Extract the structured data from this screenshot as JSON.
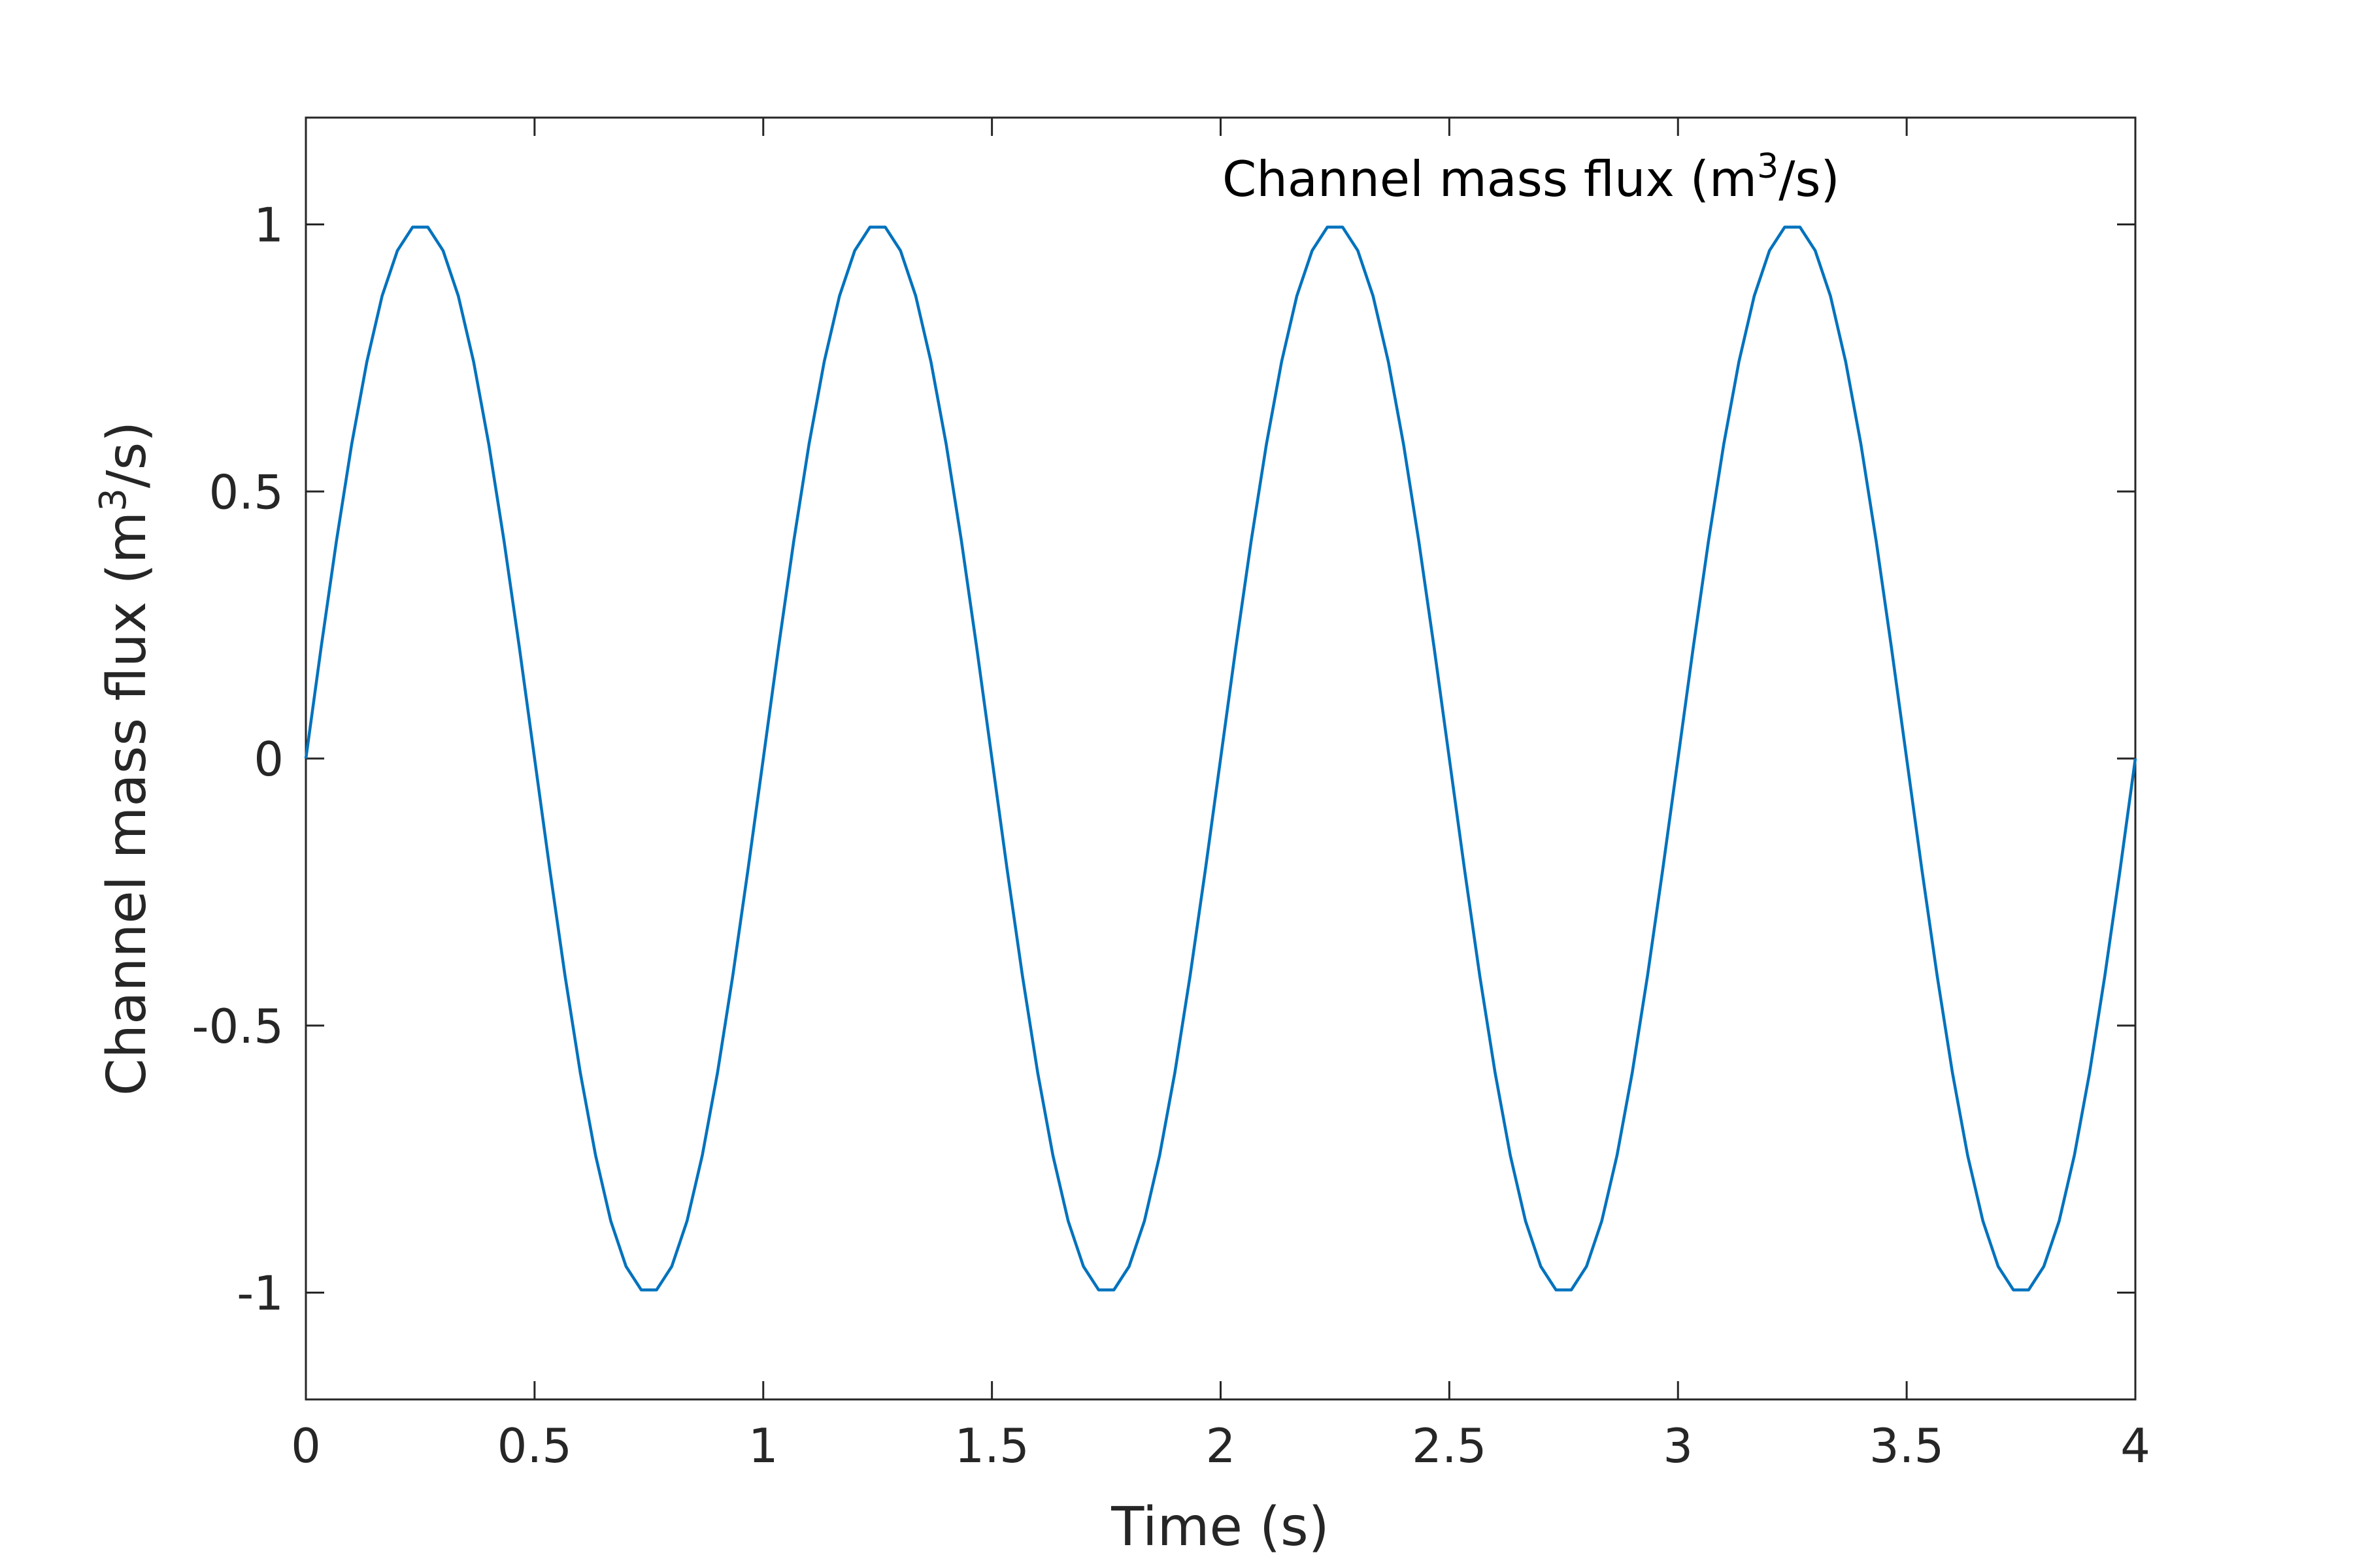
{
  "chart_data": {
    "type": "line",
    "title": "",
    "xlabel": "Time (s)",
    "ylabel": {
      "prefix": "Channel mass flux (m",
      "sup": "3",
      "suffix": "/s)"
    },
    "xlim": [
      0,
      4
    ],
    "ylim": [
      -1.2,
      1.2
    ],
    "xticks": [
      0,
      0.5,
      1,
      1.5,
      2,
      2.5,
      3,
      3.5,
      4
    ],
    "xtick_labels": [
      "0",
      "0.5",
      "1",
      "1.5",
      "2",
      "2.5",
      "3",
      "3.5",
      "4"
    ],
    "yticks": [
      -1,
      -0.5,
      0,
      0.5,
      1
    ],
    "ytick_labels": [
      "-1",
      "-0.5",
      "0",
      "0.5",
      "1"
    ],
    "grid": false,
    "annotation": {
      "prefix": "Channel mass flux (m",
      "sup": "3",
      "suffix": "/s)",
      "position": "top-right"
    },
    "series": [
      {
        "color": "#0072BD",
        "x": [
          0,
          0.0333,
          0.0667,
          0.1,
          0.1333,
          0.1667,
          0.2,
          0.2333,
          0.2667,
          0.3,
          0.3333,
          0.3667,
          0.4,
          0.4333,
          0.4667,
          0.5,
          0.5333,
          0.5667,
          0.6,
          0.6333,
          0.6667,
          0.7,
          0.7333,
          0.7667,
          0.8,
          0.8333,
          0.8667,
          0.9,
          0.9333,
          0.9667,
          1,
          1.0333,
          1.0667,
          1.1,
          1.1333,
          1.1667,
          1.2,
          1.2333,
          1.2667,
          1.3,
          1.3333,
          1.3667,
          1.4,
          1.4333,
          1.4667,
          1.5,
          1.5333,
          1.5667,
          1.6,
          1.6333,
          1.6667,
          1.7,
          1.7333,
          1.7667,
          1.8,
          1.8333,
          1.8667,
          1.9,
          1.9333,
          1.9667,
          2,
          2.0333,
          2.0667,
          2.1,
          2.1333,
          2.1667,
          2.2,
          2.2333,
          2.2667,
          2.3,
          2.3333,
          2.3667,
          2.4,
          2.4333,
          2.4667,
          2.5,
          2.5333,
          2.5667,
          2.6,
          2.6333,
          2.6667,
          2.7,
          2.7333,
          2.7667,
          2.8,
          2.8333,
          2.8667,
          2.9,
          2.9333,
          2.9667,
          3,
          3.0333,
          3.0667,
          3.1,
          3.1333,
          3.1667,
          3.2,
          3.2333,
          3.2667,
          3.3,
          3.3333,
          3.3667,
          3.4,
          3.4333,
          3.4667,
          3.5,
          3.5333,
          3.5667,
          3.6,
          3.6333,
          3.6667,
          3.7,
          3.7333,
          3.7667,
          3.8,
          3.8333,
          3.8667,
          3.9,
          3.9333,
          3.9667,
          4
        ],
        "y": [
          0,
          0.208,
          0.407,
          0.588,
          0.743,
          0.866,
          0.951,
          0.995,
          0.995,
          0.951,
          0.866,
          0.743,
          0.588,
          0.407,
          0.208,
          0,
          -0.208,
          -0.407,
          -0.588,
          -0.743,
          -0.866,
          -0.951,
          -0.995,
          -0.995,
          -0.951,
          -0.866,
          -0.743,
          -0.588,
          -0.407,
          -0.208,
          0,
          0.208,
          0.407,
          0.588,
          0.743,
          0.866,
          0.951,
          0.995,
          0.995,
          0.951,
          0.866,
          0.743,
          0.588,
          0.407,
          0.208,
          0,
          -0.208,
          -0.407,
          -0.588,
          -0.743,
          -0.866,
          -0.951,
          -0.995,
          -0.995,
          -0.951,
          -0.866,
          -0.743,
          -0.588,
          -0.407,
          -0.208,
          0,
          0.208,
          0.407,
          0.588,
          0.743,
          0.866,
          0.951,
          0.995,
          0.995,
          0.951,
          0.866,
          0.743,
          0.588,
          0.407,
          0.208,
          0,
          -0.208,
          -0.407,
          -0.588,
          -0.743,
          -0.866,
          -0.951,
          -0.995,
          -0.995,
          -0.951,
          -0.866,
          -0.743,
          -0.588,
          -0.407,
          -0.208,
          0,
          0.208,
          0.407,
          0.588,
          0.743,
          0.866,
          0.951,
          0.995,
          0.995,
          0.951,
          0.866,
          0.743,
          0.588,
          0.407,
          0.208,
          0,
          -0.208,
          -0.407,
          -0.588,
          -0.743,
          -0.866,
          -0.951,
          -0.995,
          -0.995,
          -0.951,
          -0.866,
          -0.743,
          -0.588,
          -0.407,
          -0.208,
          0
        ]
      }
    ],
    "colors": {
      "axis": "#262626",
      "background": "#ffffff"
    }
  }
}
